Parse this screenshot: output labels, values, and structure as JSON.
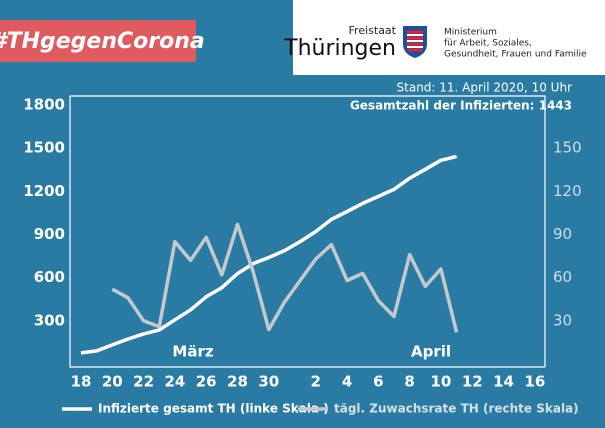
{
  "header": {
    "badge": "#THgegenCorona",
    "logo_small": "Freistaat",
    "logo_big": "Thüringen",
    "ministry": [
      "Ministerium",
      "für Arbeit, Soziales,",
      "Gesundheit, Frauen und Familie"
    ]
  },
  "chart_data": {
    "type": "line",
    "subtitle": "Stand: 11. April 2020, 10 Uhr",
    "total_label": "Gesamtzahl der Infizierten: 1443",
    "annotations": [
      "März",
      "April"
    ],
    "categories": [
      "18",
      null,
      "20",
      null,
      "22",
      null,
      "24",
      null,
      "26",
      null,
      "28",
      null,
      "30",
      null,
      null,
      "2",
      null,
      "4",
      null,
      "6",
      null,
      "8",
      null,
      "10",
      null,
      "12",
      null,
      "14",
      null,
      "16"
    ],
    "series": [
      {
        "name": "Infizierte gesamt TH (linke Skala )",
        "color": "#ffffff",
        "axis": "y",
        "values": [
          77,
          91,
          133,
          174,
          209,
          237,
          307,
          377,
          467,
          530,
          628,
          698,
          740,
          788,
          851,
          921,
          1005,
          1060,
          1116,
          1165,
          1214,
          1291,
          1353,
          1416,
          1443,
          null,
          null,
          null,
          null,
          null
        ]
      },
      {
        "name": "tägl. Zuwachsrate TH (rechte Skala)",
        "color": "#c4c9cc",
        "axis": "y2",
        "values": [
          null,
          null,
          52,
          46,
          30,
          26,
          85,
          72,
          88,
          62,
          97,
          64,
          24,
          43,
          58,
          73,
          83,
          58,
          63,
          44,
          33,
          76,
          54,
          66,
          22,
          null,
          null,
          null,
          null,
          null
        ]
      }
    ],
    "ylim": [
      0,
      1800
    ],
    "yticks": [
      300,
      600,
      900,
      1200,
      1500,
      1800
    ],
    "y2lim": [
      0,
      180
    ],
    "y2ticks": [
      30,
      60,
      90,
      120,
      150
    ],
    "grid": false
  }
}
